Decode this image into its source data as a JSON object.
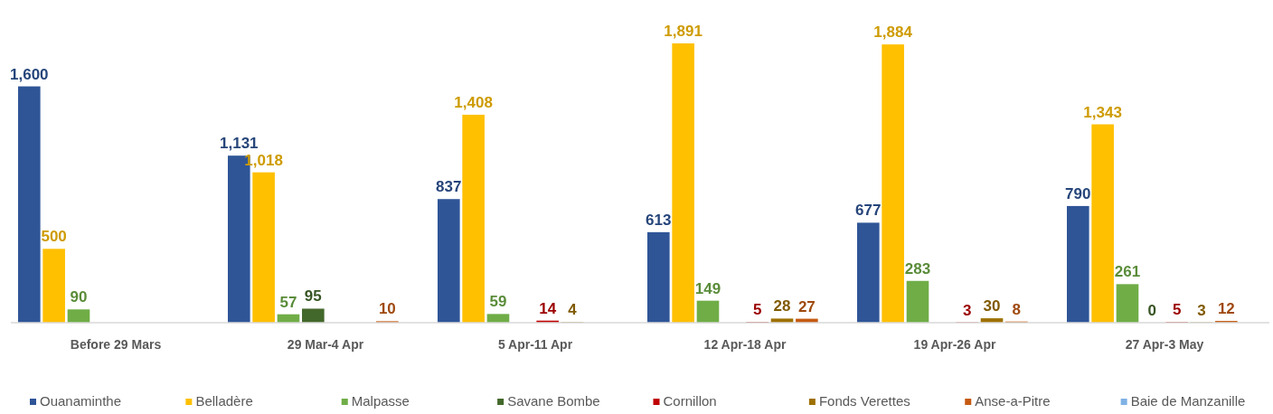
{
  "chart_data": {
    "type": "bar",
    "categories": [
      "Before 29 Mars",
      "29 Mar-4 Apr",
      "5 Apr-11 Apr",
      "12 Apr-18 Apr",
      "19 Apr-26 Apr",
      "27 Apr-3 May"
    ],
    "legend": "bottom",
    "series": [
      {
        "name": "Ouanaminthe",
        "color": "#2f5597",
        "values": [
          1600,
          1131,
          837,
          613,
          677,
          790
        ],
        "value_labels": [
          "1,600",
          "1,131",
          "837",
          "613",
          "677",
          "790"
        ]
      },
      {
        "name": "Belladère",
        "color": "#ffc000",
        "values": [
          500,
          1018,
          1408,
          1891,
          1884,
          1343
        ],
        "value_labels": [
          "500",
          "1,018",
          "1,408",
          "1,891",
          "1,884",
          "1,343"
        ]
      },
      {
        "name": "Malpasse",
        "color": "#70ad47",
        "values": [
          90,
          57,
          59,
          149,
          283,
          261
        ],
        "value_labels": [
          "90",
          "57",
          "59",
          "149",
          "283",
          "261"
        ]
      },
      {
        "name": "Savane Bombe",
        "color": "#43682b",
        "values": [
          null,
          95,
          null,
          null,
          null,
          0
        ],
        "value_labels": [
          null,
          "95",
          null,
          null,
          null,
          "0"
        ]
      },
      {
        "name": "Cornillon",
        "color": "#c00000",
        "values": [
          null,
          null,
          14,
          5,
          3,
          5
        ],
        "value_labels": [
          null,
          null,
          "14",
          "5",
          "3",
          "5"
        ]
      },
      {
        "name": "Fonds Verettes",
        "color": "#9e7000",
        "values": [
          null,
          null,
          4,
          28,
          30,
          3
        ],
        "value_labels": [
          null,
          null,
          "4",
          "28",
          "30",
          "3"
        ]
      },
      {
        "name": "Anse-a-Pitre",
        "color": "#c55a11",
        "values": [
          null,
          10,
          null,
          27,
          8,
          12
        ],
        "value_labels": [
          null,
          "10",
          null,
          "27",
          "8",
          "12"
        ]
      },
      {
        "name": "Baie de Manzanille",
        "color": "#7fb2e5",
        "values": [
          null,
          null,
          null,
          null,
          null,
          null
        ]
      }
    ]
  }
}
